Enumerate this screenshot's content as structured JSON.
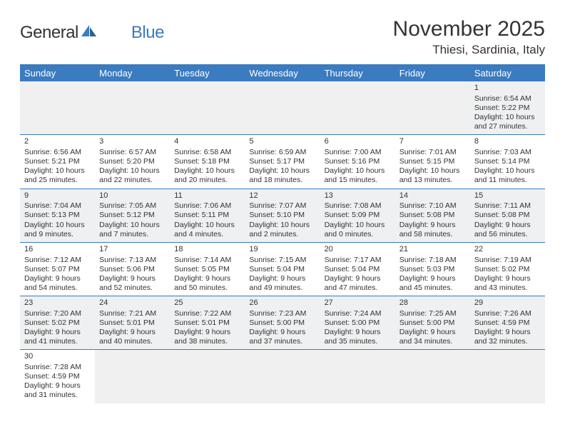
{
  "colors": {
    "accent": "#3b7bbf",
    "text": "#333333",
    "bg_empty": "#f0f0f0",
    "bg_even_week": "#eff0f1",
    "bg_odd_week": "#ffffff"
  },
  "logo": {
    "part1": "General",
    "part2": "Blue"
  },
  "title": "November 2025",
  "location": "Thiesi, Sardinia, Italy",
  "days_of_week": [
    "Sunday",
    "Monday",
    "Tuesday",
    "Wednesday",
    "Thursday",
    "Friday",
    "Saturday"
  ],
  "labels": {
    "sunrise": "Sunrise:",
    "sunset": "Sunset:",
    "daylight": "Daylight:"
  },
  "weeks": [
    {
      "parity": "even",
      "cells": [
        {
          "empty": true
        },
        {
          "empty": true
        },
        {
          "empty": true
        },
        {
          "empty": true
        },
        {
          "empty": true
        },
        {
          "empty": true
        },
        {
          "day": "1",
          "sunrise": "6:54 AM",
          "sunset": "5:22 PM",
          "daylight": "10 hours and 27 minutes."
        }
      ]
    },
    {
      "parity": "odd",
      "cells": [
        {
          "day": "2",
          "sunrise": "6:56 AM",
          "sunset": "5:21 PM",
          "daylight": "10 hours and 25 minutes."
        },
        {
          "day": "3",
          "sunrise": "6:57 AM",
          "sunset": "5:20 PM",
          "daylight": "10 hours and 22 minutes."
        },
        {
          "day": "4",
          "sunrise": "6:58 AM",
          "sunset": "5:18 PM",
          "daylight": "10 hours and 20 minutes."
        },
        {
          "day": "5",
          "sunrise": "6:59 AM",
          "sunset": "5:17 PM",
          "daylight": "10 hours and 18 minutes."
        },
        {
          "day": "6",
          "sunrise": "7:00 AM",
          "sunset": "5:16 PM",
          "daylight": "10 hours and 15 minutes."
        },
        {
          "day": "7",
          "sunrise": "7:01 AM",
          "sunset": "5:15 PM",
          "daylight": "10 hours and 13 minutes."
        },
        {
          "day": "8",
          "sunrise": "7:03 AM",
          "sunset": "5:14 PM",
          "daylight": "10 hours and 11 minutes."
        }
      ]
    },
    {
      "parity": "even",
      "cells": [
        {
          "day": "9",
          "sunrise": "7:04 AM",
          "sunset": "5:13 PM",
          "daylight": "10 hours and 9 minutes."
        },
        {
          "day": "10",
          "sunrise": "7:05 AM",
          "sunset": "5:12 PM",
          "daylight": "10 hours and 7 minutes."
        },
        {
          "day": "11",
          "sunrise": "7:06 AM",
          "sunset": "5:11 PM",
          "daylight": "10 hours and 4 minutes."
        },
        {
          "day": "12",
          "sunrise": "7:07 AM",
          "sunset": "5:10 PM",
          "daylight": "10 hours and 2 minutes."
        },
        {
          "day": "13",
          "sunrise": "7:08 AM",
          "sunset": "5:09 PM",
          "daylight": "10 hours and 0 minutes."
        },
        {
          "day": "14",
          "sunrise": "7:10 AM",
          "sunset": "5:08 PM",
          "daylight": "9 hours and 58 minutes."
        },
        {
          "day": "15",
          "sunrise": "7:11 AM",
          "sunset": "5:08 PM",
          "daylight": "9 hours and 56 minutes."
        }
      ]
    },
    {
      "parity": "odd",
      "cells": [
        {
          "day": "16",
          "sunrise": "7:12 AM",
          "sunset": "5:07 PM",
          "daylight": "9 hours and 54 minutes."
        },
        {
          "day": "17",
          "sunrise": "7:13 AM",
          "sunset": "5:06 PM",
          "daylight": "9 hours and 52 minutes."
        },
        {
          "day": "18",
          "sunrise": "7:14 AM",
          "sunset": "5:05 PM",
          "daylight": "9 hours and 50 minutes."
        },
        {
          "day": "19",
          "sunrise": "7:15 AM",
          "sunset": "5:04 PM",
          "daylight": "9 hours and 49 minutes."
        },
        {
          "day": "20",
          "sunrise": "7:17 AM",
          "sunset": "5:04 PM",
          "daylight": "9 hours and 47 minutes."
        },
        {
          "day": "21",
          "sunrise": "7:18 AM",
          "sunset": "5:03 PM",
          "daylight": "9 hours and 45 minutes."
        },
        {
          "day": "22",
          "sunrise": "7:19 AM",
          "sunset": "5:02 PM",
          "daylight": "9 hours and 43 minutes."
        }
      ]
    },
    {
      "parity": "even",
      "cells": [
        {
          "day": "23",
          "sunrise": "7:20 AM",
          "sunset": "5:02 PM",
          "daylight": "9 hours and 41 minutes."
        },
        {
          "day": "24",
          "sunrise": "7:21 AM",
          "sunset": "5:01 PM",
          "daylight": "9 hours and 40 minutes."
        },
        {
          "day": "25",
          "sunrise": "7:22 AM",
          "sunset": "5:01 PM",
          "daylight": "9 hours and 38 minutes."
        },
        {
          "day": "26",
          "sunrise": "7:23 AM",
          "sunset": "5:00 PM",
          "daylight": "9 hours and 37 minutes."
        },
        {
          "day": "27",
          "sunrise": "7:24 AM",
          "sunset": "5:00 PM",
          "daylight": "9 hours and 35 minutes."
        },
        {
          "day": "28",
          "sunrise": "7:25 AM",
          "sunset": "5:00 PM",
          "daylight": "9 hours and 34 minutes."
        },
        {
          "day": "29",
          "sunrise": "7:26 AM",
          "sunset": "4:59 PM",
          "daylight": "9 hours and 32 minutes."
        }
      ]
    },
    {
      "parity": "odd",
      "cells": [
        {
          "day": "30",
          "sunrise": "7:28 AM",
          "sunset": "4:59 PM",
          "daylight": "9 hours and 31 minutes."
        },
        {
          "empty": true
        },
        {
          "empty": true
        },
        {
          "empty": true
        },
        {
          "empty": true
        },
        {
          "empty": true
        },
        {
          "empty": true
        }
      ]
    }
  ]
}
